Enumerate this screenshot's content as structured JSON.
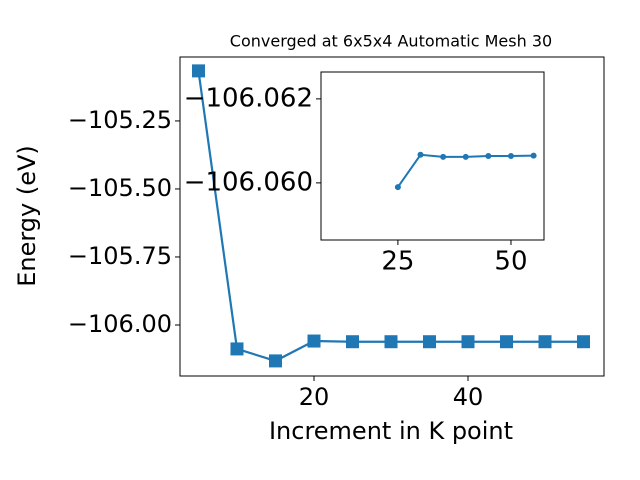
{
  "chart_data": [
    {
      "type": "line",
      "title": "Converged at 6x5x4 Automatic Mesh 30",
      "x_label": "Increment in K point",
      "y_label": "Energy (eV)",
      "x": [
        5,
        10,
        15,
        20,
        25,
        30,
        35,
        40,
        45,
        50,
        55
      ],
      "series": [
        {
          "color": "#1f77b4",
          "marker": "square",
          "values": [
            -105.066,
            -106.088,
            -106.132,
            -106.059,
            -106.0615,
            -106.0615,
            -106.0615,
            -106.0615,
            -106.0615,
            -106.0615,
            -106.0615
          ]
        }
      ],
      "xlim": [
        2.6,
        57.66
      ],
      "ylim": [
        -106.1875,
        -105.015
      ],
      "xticks": [
        20,
        40
      ],
      "yticks": [
        {
          "value": -106.0,
          "label": "−106.00"
        },
        {
          "value": -105.75,
          "label": "−105.75"
        },
        {
          "value": -105.5,
          "label": "−105.50"
        },
        {
          "value": -105.25,
          "label": "−105.25"
        }
      ]
    },
    {
      "type": "line",
      "x": [
        25,
        30,
        35,
        40,
        45,
        50,
        55
      ],
      "series": [
        {
          "color": "#1f77b4",
          "marker": "circle",
          "values": [
            -106.0599,
            -106.06067,
            -106.06062,
            -106.06062,
            -106.06064,
            -106.06064,
            -106.06065
          ]
        }
      ],
      "xlim": [
        8,
        57.3
      ],
      "ylim": [
        -106.05864,
        -106.06264
      ],
      "xticks": [
        25,
        50
      ],
      "yticks": [
        {
          "value": -106.062,
          "label": "−106.062"
        },
        {
          "value": -106.06,
          "label": "−106.060"
        }
      ]
    }
  ]
}
